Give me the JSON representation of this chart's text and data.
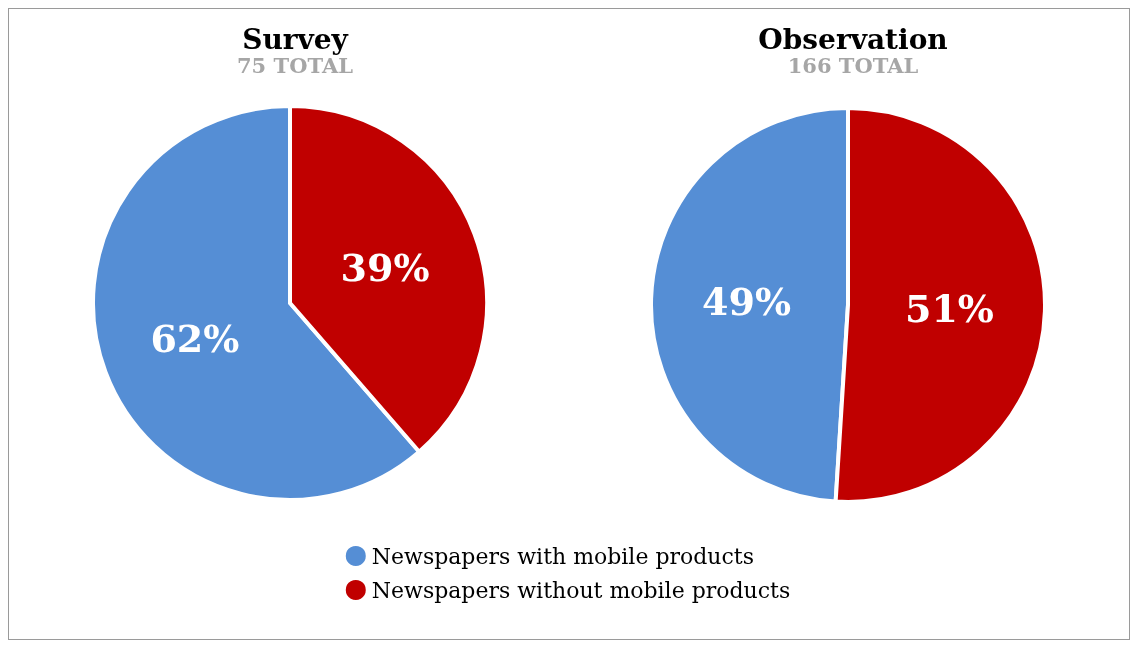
{
  "chart_data": {
    "type": "pie",
    "categories": [
      "Newspapers with mobile products",
      "Newspapers without mobile products"
    ],
    "colors": [
      "#558ed5",
      "#c00000"
    ],
    "legend": "bottom",
    "series": [
      {
        "name": "Survey",
        "values": [
          62,
          39
        ],
        "value_labels": [
          "62%",
          "39%"
        ]
      },
      {
        "name": "Observation",
        "values": [
          49,
          51
        ],
        "value_labels": [
          "49%",
          "51%"
        ]
      }
    ],
    "annotations": [
      "75 TOTAL",
      "166 TOTAL"
    ]
  }
}
